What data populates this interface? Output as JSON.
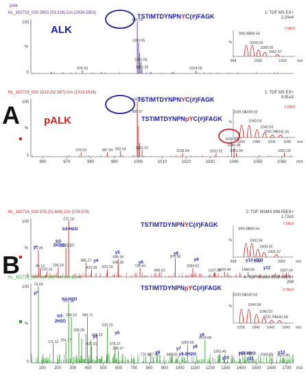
{
  "colors": {
    "purple": "#5b2a9e",
    "red": "#cc2222",
    "green": "#2a9a2a",
    "blue": "#1a1aa6"
  },
  "panel_labels": {
    "a": "A",
    "b": "B"
  },
  "chart_data": [
    {
      "type": "bar",
      "panel": "A-top",
      "color": "#5b2a9e",
      "top_title": "pAlk",
      "header_left": "KL_102716_030 2953 (53.218) Cm (2934:2953)",
      "header_right": "1: TOF MS ES+",
      "header_right2": "2.20e4",
      "label": "ALK",
      "sequence": {
        "pre": "TSTIMTDYNPN",
        "mid": "Y",
        "post": "C(#)FAGK",
        "mid_color": "#cc2222"
      },
      "xlim": [
        955,
        1065
      ],
      "ylim": [
        0,
        100
      ],
      "peaks": [
        {
          "x": 976.53,
          "y": 6,
          "label": "976.53"
        },
        {
          "x": 999.54,
          "y": 100,
          "label": "999.54"
        },
        {
          "x": 1000.05,
          "y": 60,
          "label": "1000.05"
        },
        {
          "x": 1000.54,
          "y": 40
        },
        {
          "x": 1001.05,
          "y": 23,
          "label": "1001.05"
        },
        {
          "x": 1001.55,
          "y": 8,
          "label": "1001.55"
        },
        {
          "x": 1024.05,
          "y": 6,
          "label": "1024.05"
        }
      ],
      "inset": {
        "xlim": [
          998,
          1003
        ],
        "ticks": [
          "998",
          "1000",
          "1002"
        ],
        "intensity": "7.58e3",
        "peaks": [
          {
            "x": 999.05,
            "y": 100,
            "label": "999.05"
          },
          {
            "x": 999.54,
            "y": 100,
            "label": "999.54"
          },
          {
            "x": 1000.04,
            "y": 55,
            "label": "1000.04"
          },
          {
            "x": 1000.55,
            "y": 32,
            "label": "1000.55"
          },
          {
            "x": 1001.57,
            "y": 12,
            "label": "1001.57"
          }
        ]
      }
    },
    {
      "type": "bar",
      "panel": "A-bottom",
      "color": "#cc2222",
      "header_left": "KL_102716_028 1913 (52.587) Cm (1913:1916)",
      "header_right": "1: TOF MS ES+",
      "header_right2": "9.91e3",
      "label": "pALK",
      "sequence": {
        "pre": "TSTIMTDYNPN",
        "mid": "pY",
        "post": "C(#)FAGK",
        "mid_color": "#cc2222"
      },
      "sequence2": {
        "pre": "TSTIMTDYNPN",
        "mid": "Y",
        "post": "C(#)FAGK",
        "mid_color": "#cc2222"
      },
      "xlim": [
        955,
        1065
      ],
      "ylim": [
        0,
        100
      ],
      "xticks": [
        960,
        970,
        980,
        990,
        1000,
        1010,
        1020,
        1030,
        1040,
        1050,
        1060
      ],
      "peaks": [
        {
          "x": 976.03,
          "y": 8,
          "label": "976.03"
        },
        {
          "x": 987.04,
          "y": 8,
          "label": "987.04"
        },
        {
          "x": 992.54,
          "y": 10,
          "label": "992.54"
        },
        {
          "x": 999.54,
          "y": 100,
          "label": "999.54"
        },
        {
          "x": 999.57,
          "y": 78,
          "label": "999.57"
        },
        {
          "x": 1000.04,
          "y": 55
        },
        {
          "x": 1000.55,
          "y": 25
        },
        {
          "x": 1001.57,
          "y": 12,
          "label": "1001.57"
        },
        {
          "x": 1018.54,
          "y": 7,
          "label": "1018.54"
        },
        {
          "x": 1032.52,
          "y": 6,
          "label": "1032.52"
        },
        {
          "x": 1039.04,
          "y": 28,
          "label": "1039.04"
        },
        {
          "x": 1040.06,
          "y": 17,
          "label": "1040.06"
        },
        {
          "x": 1041.04,
          "y": 7,
          "label": "1041.04"
        },
        {
          "x": 1061.09,
          "y": 7,
          "label": "1061.09"
        }
      ],
      "inset": {
        "xlim": [
          1038.5,
          1042.5
        ],
        "ticks": [
          "1039",
          "1040",
          "1041",
          "1042"
        ],
        "intensity": "2.29e3",
        "peaks": [
          {
            "x": 1039.04,
            "y": 100,
            "label": "1039.04"
          },
          {
            "x": 1039.53,
            "y": 100,
            "label": "1039.53"
          },
          {
            "x": 1040.04,
            "y": 62,
            "label": "1040.04"
          },
          {
            "x": 1040.53,
            "y": 36,
            "label": "1040.53"
          },
          {
            "x": 1041.04,
            "y": 16,
            "label": "1041.04"
          },
          {
            "x": 1041.56,
            "y": 14,
            "label": "1041.56"
          }
        ]
      }
    },
    {
      "type": "bar",
      "panel": "B-top",
      "color": "#cc2222",
      "header_left": "KL_102716_028 578 (52.606) Cm (576:579)",
      "header_right": "2: TOF MSMS 999.05ES+",
      "header_right2": "1.72e3",
      "sequence": {
        "pre": "TSTIMTDYNPN",
        "mid": "Y",
        "post": "C(#)FAGK",
        "mid_color": "#cc2222"
      },
      "xlim": [
        25,
        1745
      ],
      "ylim": [
        0,
        100
      ],
      "peaks": [
        {
          "x": 74.09,
          "y": 48,
          "label": "74.09"
        },
        {
          "x": 86.13,
          "y": 16,
          "label": "86.13"
        },
        {
          "x": 129.14,
          "y": 10,
          "label": "129.14"
        },
        {
          "x": 204.18,
          "y": 17,
          "label": "204.18"
        },
        {
          "x": 254.17,
          "y": 52,
          "label": "254.17"
        },
        {
          "x": 272.18,
          "y": 100,
          "label": "272.18"
        },
        {
          "x": 272.19,
          "y": 53,
          "label": "272.19"
        },
        {
          "x": 385.27,
          "y": 26,
          "label": "385.27"
        },
        {
          "x": 422.3,
          "y": 13,
          "label": "422.30"
        },
        {
          "x": 525.19,
          "y": 14,
          "label": "525.19"
        },
        {
          "x": 596.36,
          "y": 32,
          "label": "596.36"
        },
        {
          "x": 596.38,
          "y": 22,
          "label": "596.38"
        },
        {
          "x": 739.44,
          "y": 16,
          "label": "739.44"
        },
        {
          "x": 868.51,
          "y": 8,
          "label": "868.51"
        },
        {
          "x": 970.56,
          "y": 33,
          "label": "970.56"
        },
        {
          "x": 1084.62,
          "y": 16,
          "label": "1084.62"
        },
        {
          "x": 1227.56,
          "y": 8,
          "label": "1227.56"
        },
        {
          "x": 1292.44,
          "y": 9,
          "label": "1292.44"
        },
        {
          "x": 1446.69,
          "y": 9,
          "label": "1446.69"
        },
        {
          "x": 1697.14,
          "y": 8,
          "label": "1697.14"
        }
      ],
      "fragments": [
        {
          "label": "y*",
          "x": 55,
          "y": 51
        },
        {
          "label": "b3-H2O",
          "x": 282,
          "y": 84
        },
        {
          "label": "b3-",
          "x": 208,
          "y": 62
        },
        {
          "label": "2H2O",
          "x": 208,
          "y": 55
        },
        {
          "label": "y4",
          "x": 450,
          "y": 27
        },
        {
          "label": "y5",
          "x": 592,
          "y": 42
        },
        {
          "label": "y6",
          "x": 745,
          "y": 24
        },
        {
          "label": "y8",
          "x": 975,
          "y": 40
        },
        {
          "label": "y9",
          "x": 1108,
          "y": 29
        },
        {
          "label": "y12-H2O",
          "x": 1488,
          "y": 28
        },
        {
          "label": "y12",
          "x": 1570,
          "y": 14
        }
      ],
      "inset": {
        "xlim": [
          998,
          1003
        ],
        "ticks": [
          "998",
          "1000",
          "1002"
        ],
        "intensity": "7.58e3",
        "peaks": [
          {
            "x": 999.05,
            "y": 100,
            "label": "999.05"
          },
          {
            "x": 999.54,
            "y": 100,
            "label": "999.54"
          },
          {
            "x": 1000.04,
            "y": 55,
            "label": "1000.04"
          },
          {
            "x": 1000.55,
            "y": 32,
            "label": "1000.55"
          },
          {
            "x": 1001.57,
            "y": 12,
            "label": "1001.57"
          }
        ]
      }
    },
    {
      "type": "bar",
      "panel": "B-bottom",
      "color": "#2a9a2a",
      "header_left": "KL_102716_028 234 (52.764) Cm (234)",
      "header_right": "4: TOF MSMS 1039.04ES+",
      "header_right2": "299",
      "sequence": {
        "pre": "TSTIMTDYNPN",
        "mid": "pY",
        "post": "C(#)FAGK",
        "mid_color": "#cc2222"
      },
      "xlim": [
        25,
        1745
      ],
      "ylim": [
        0,
        100
      ],
      "xticks": [
        100,
        200,
        300,
        400,
        500,
        600,
        700,
        800,
        900,
        1000,
        1100,
        1200,
        1300,
        1400,
        1500,
        1600,
        1700
      ],
      "peaks": [
        {
          "x": 74.09,
          "y": 100,
          "label": "74.09"
        },
        {
          "x": 171.12,
          "y": 25,
          "label": "171.12"
        },
        {
          "x": 254.17,
          "y": 27,
          "label": "254.17"
        },
        {
          "x": 272.18,
          "y": 78,
          "label": "272.18"
        },
        {
          "x": 290.19,
          "y": 60,
          "label": "290.19"
        },
        {
          "x": 339.28,
          "y": 40,
          "label": "339.28"
        },
        {
          "x": 357.75,
          "y": 32
        },
        {
          "x": 385.27,
          "y": 38
        },
        {
          "x": 395.71,
          "y": 60,
          "label": "395.71"
        },
        {
          "x": 416.73,
          "y": 30
        },
        {
          "x": 422.31,
          "y": 22,
          "label": "422.31"
        },
        {
          "x": 458.23,
          "y": 34,
          "label": "458.23"
        },
        {
          "x": 525.19,
          "y": 47,
          "label": "525.19"
        },
        {
          "x": 576.37,
          "y": 22,
          "label": "576.37"
        },
        {
          "x": 596.47,
          "y": 16,
          "label": "596.47"
        },
        {
          "x": 776.19,
          "y": 8,
          "label": "776.19"
        },
        {
          "x": 827.51,
          "y": 8,
          "label": "827.51"
        },
        {
          "x": 948.0,
          "y": 8,
          "label": "948.00"
        },
        {
          "x": 1050.55,
          "y": 24,
          "label": "1050.55"
        },
        {
          "x": 1164.68,
          "y": 30,
          "label": "1164.68"
        },
        {
          "x": 1261.45,
          "y": 12,
          "label": "1261.45"
        },
        {
          "x": 1425.69,
          "y": 10,
          "label": "1425.69"
        },
        {
          "x": 1566.89,
          "y": 8,
          "label": "1566.89"
        },
        {
          "x": 1676.8,
          "y": 7,
          "label": "1676.80"
        }
      ],
      "fragments": [
        {
          "label": "p*",
          "x": 60,
          "y": 90
        },
        {
          "label": "b3-H2O",
          "x": 278,
          "y": 82
        },
        {
          "label": "b3-",
          "x": 218,
          "y": 60
        },
        {
          "label": "2H2O",
          "x": 218,
          "y": 53
        },
        {
          "label": "y4",
          "x": 445,
          "y": 33
        },
        {
          "label": "y5",
          "x": 590,
          "y": 38
        },
        {
          "label": "y6",
          "x": 855,
          "y": 12
        },
        {
          "label": "y7",
          "x": 992,
          "y": 17
        },
        {
          "label": "y8",
          "x": 1100,
          "y": 20
        },
        {
          "label": "y9",
          "x": 1145,
          "y": 35
        },
        {
          "label": "y9-2H2O",
          "x": 1050,
          "y": 10
        },
        {
          "label": "y11-H2O",
          "x": 1440,
          "y": 11
        },
        {
          "label": "y10",
          "x": 1300,
          "y": 5
        },
        {
          "label": "y11",
          "x": 1460,
          "y": 4
        },
        {
          "label": "y13",
          "x": 1665,
          "y": 12
        }
      ],
      "inset": {
        "xlim": [
          1038.5,
          1042.5
        ],
        "ticks": [
          "1039",
          "1040",
          "1041",
          "1042"
        ],
        "intensity": "2.29e3",
        "peaks": [
          {
            "x": 1039.04,
            "y": 100,
            "label": "1039.04"
          },
          {
            "x": 1039.53,
            "y": 100,
            "label": "1039.53"
          },
          {
            "x": 1040.04,
            "y": 62,
            "label": "1040.04"
          },
          {
            "x": 1040.53,
            "y": 36,
            "label": "1040.53"
          },
          {
            "x": 1041.04,
            "y": 16,
            "label": "1041.04"
          },
          {
            "x": 1041.56,
            "y": 14,
            "label": "1041.56"
          }
        ]
      }
    }
  ]
}
